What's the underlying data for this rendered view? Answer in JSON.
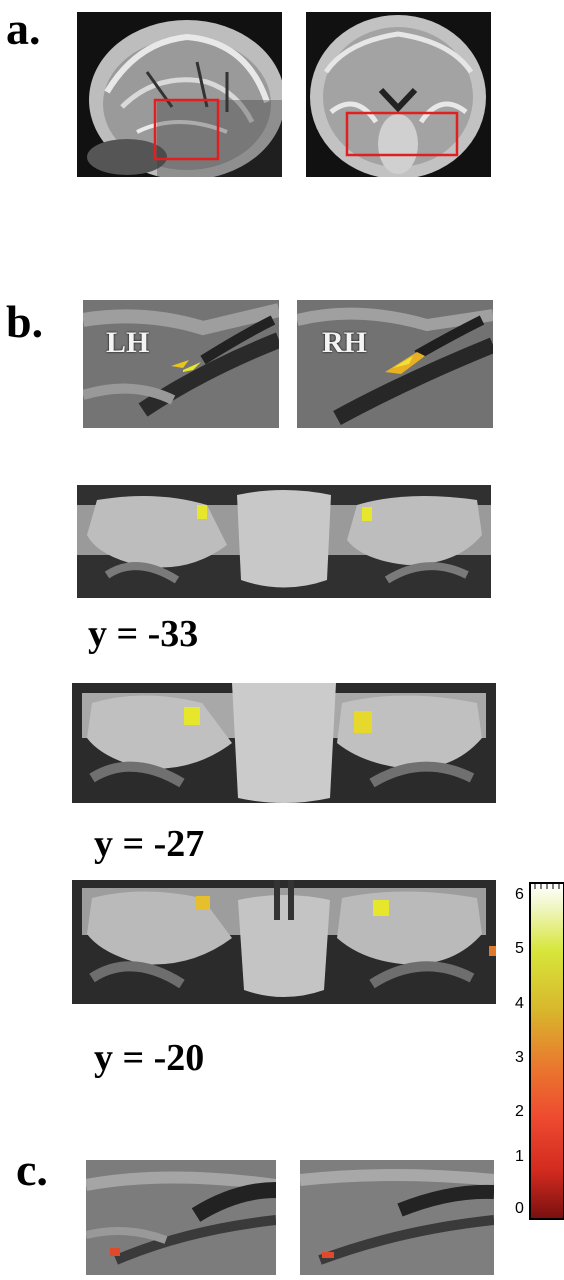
{
  "panel_labels": {
    "a": "a.",
    "b": "b.",
    "c": "c."
  },
  "hemisphere_labels": {
    "left": "LH",
    "right": "RH"
  },
  "slice_labels": [
    "y = -33",
    "y = -27",
    "y = -20"
  ],
  "colorbar": {
    "ticks": [
      "6",
      "5",
      "4",
      "3",
      "2",
      "1",
      "0"
    ],
    "colors": {
      "low": "#7a1010",
      "mid": "#e97a2e",
      "high": "#ffffff"
    }
  }
}
